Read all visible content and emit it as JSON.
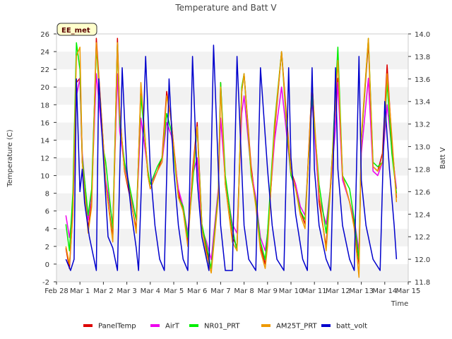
{
  "chart_data": {
    "type": "line",
    "title": "Temperature and Batt V",
    "xlabel": "Time",
    "ylabel": "Temperature (C)",
    "y2label": "Batt V",
    "badge": "EE_met",
    "xlim": [
      "Feb 28",
      "Mar 15"
    ],
    "x_ticks": [
      "Feb 28",
      "Mar 1",
      "Mar 2",
      "Mar 3",
      "Mar 4",
      "Mar 5",
      "Mar 6",
      "Mar 7",
      "Mar 8",
      "Mar 9",
      "Mar 10",
      "Mar 11",
      "Mar 12",
      "Mar 13",
      "Mar 14",
      "Mar 15"
    ],
    "ylim": [
      -2,
      26
    ],
    "y_ticks": [
      -2,
      0,
      2,
      4,
      6,
      8,
      10,
      12,
      14,
      16,
      18,
      20,
      22,
      24,
      26
    ],
    "y2lim": [
      11.8,
      14.0
    ],
    "y2_ticks": [
      "11.8",
      "12.0",
      "12.2",
      "12.4",
      "12.6",
      "12.8",
      "13.0",
      "13.2",
      "13.4",
      "13.6",
      "13.8",
      "14.0"
    ],
    "grid": "horizontal bands",
    "legend_position": "bottom",
    "x_day_offset_note": "x values are days after Feb 28",
    "series": [
      {
        "name": "PanelTemp",
        "color": "#dd0000",
        "axis": "left",
        "x": [
          0.4,
          0.55,
          0.7,
          0.85,
          1.0,
          1.1,
          1.35,
          1.5,
          1.7,
          2.0,
          2.1,
          2.4,
          2.6,
          2.7,
          2.9,
          3.1,
          3.4,
          3.6,
          3.9,
          4.0,
          4.3,
          4.5,
          4.7,
          4.9,
          5.2,
          5.4,
          5.6,
          5.8,
          6.0,
          6.2,
          6.4,
          6.6,
          6.9,
          7.0,
          7.2,
          7.5,
          7.7,
          7.9,
          8.0,
          8.3,
          8.5,
          8.7,
          8.9,
          9.0,
          9.3,
          9.6,
          9.8,
          10.0,
          10.2,
          10.4,
          10.6,
          10.9,
          11.2,
          11.5,
          11.7,
          11.9,
          12.0,
          12.2,
          12.5,
          12.7,
          12.9,
          13.0,
          13.3,
          13.5,
          13.7,
          13.9,
          14.1,
          14.3,
          14.5
        ],
        "y": [
          1.8,
          -0.5,
          6.0,
          20.5,
          21.0,
          11.5,
          4.0,
          7.0,
          25.5,
          13.5,
          9.0,
          3.0,
          25.5,
          17.0,
          10.5,
          8.0,
          4.0,
          20.0,
          10.0,
          8.5,
          10.5,
          12.0,
          19.5,
          16.0,
          8.0,
          6.0,
          2.5,
          10.5,
          16.0,
          4.5,
          1.5,
          -0.5,
          8.0,
          20.5,
          9.0,
          3.0,
          2.0,
          19.5,
          21.5,
          11.0,
          7.0,
          2.0,
          0.0,
          2.5,
          15.0,
          24.0,
          17.0,
          10.5,
          9.0,
          6.0,
          4.5,
          20.5,
          7.0,
          2.0,
          9.5,
          18.0,
          21.0,
          10.0,
          7.0,
          4.5,
          0.0,
          14.0,
          25.0,
          11.0,
          10.5,
          12.5,
          22.5,
          14.0,
          7.5
        ]
      },
      {
        "name": "AirT",
        "color": "#ee00ee",
        "axis": "left",
        "x": [
          0.4,
          0.55,
          0.7,
          0.85,
          1.0,
          1.1,
          1.35,
          1.5,
          1.7,
          2.0,
          2.1,
          2.4,
          2.6,
          2.7,
          2.9,
          3.1,
          3.4,
          3.6,
          3.9,
          4.0,
          4.3,
          4.5,
          4.7,
          4.9,
          5.2,
          5.4,
          5.6,
          5.8,
          6.0,
          6.2,
          6.4,
          6.6,
          6.9,
          7.0,
          7.2,
          7.5,
          7.7,
          7.9,
          8.0,
          8.3,
          8.5,
          8.7,
          8.9,
          9.0,
          9.3,
          9.6,
          9.8,
          10.0,
          10.2,
          10.4,
          10.6,
          10.9,
          11.2,
          11.5,
          11.7,
          11.9,
          12.0,
          12.2,
          12.5,
          12.7,
          12.9,
          13.0,
          13.3,
          13.5,
          13.7,
          13.9,
          14.1,
          14.3,
          14.5
        ],
        "y": [
          5.5,
          3.0,
          6.0,
          19.0,
          21.0,
          12.5,
          5.0,
          8.0,
          21.5,
          13.0,
          9.5,
          4.5,
          21.5,
          15.0,
          11.0,
          8.5,
          5.0,
          16.5,
          10.5,
          9.0,
          10.5,
          11.5,
          16.0,
          14.5,
          8.5,
          6.5,
          3.5,
          10.0,
          12.0,
          4.0,
          2.5,
          0.5,
          8.5,
          16.5,
          9.5,
          4.5,
          3.5,
          17.0,
          19.0,
          10.5,
          7.5,
          3.0,
          1.5,
          3.5,
          14.0,
          20.0,
          15.0,
          10.0,
          9.0,
          6.5,
          5.5,
          18.5,
          7.5,
          4.5,
          9.0,
          15.5,
          20.5,
          9.5,
          7.0,
          5.0,
          1.5,
          12.5,
          21.0,
          10.5,
          10.0,
          11.5,
          18.0,
          13.0,
          8.5
        ]
      },
      {
        "name": "NR01_PRT",
        "color": "#00ee00",
        "axis": "left",
        "x": [
          0.4,
          0.55,
          0.7,
          0.85,
          1.0,
          1.1,
          1.35,
          1.5,
          1.7,
          2.0,
          2.1,
          2.4,
          2.6,
          2.7,
          2.9,
          3.1,
          3.4,
          3.6,
          3.9,
          4.0,
          4.3,
          4.5,
          4.7,
          4.9,
          5.2,
          5.4,
          5.6,
          5.8,
          6.0,
          6.2,
          6.4,
          6.6,
          6.9,
          7.0,
          7.2,
          7.5,
          7.7,
          7.9,
          8.0,
          8.3,
          8.5,
          8.7,
          8.9,
          9.0,
          9.3,
          9.6,
          9.8,
          10.0,
          10.2,
          10.4,
          10.6,
          10.9,
          11.2,
          11.5,
          11.7,
          11.9,
          12.0,
          12.2,
          12.5,
          12.7,
          12.9,
          13.0,
          13.3,
          13.5,
          13.7,
          13.9,
          14.1,
          14.3,
          14.5
        ],
        "y": [
          4.5,
          1.5,
          8.0,
          25.0,
          22.0,
          12.0,
          5.5,
          8.5,
          24.5,
          13.0,
          11.5,
          4.0,
          25.0,
          16.0,
          11.5,
          9.0,
          5.0,
          19.0,
          10.5,
          9.0,
          11.0,
          12.0,
          17.0,
          15.0,
          7.5,
          6.5,
          3.0,
          9.0,
          15.5,
          4.5,
          2.0,
          -0.5,
          8.0,
          20.5,
          10.0,
          4.0,
          1.5,
          20.0,
          21.5,
          10.0,
          7.0,
          2.5,
          0.5,
          3.5,
          16.0,
          24.0,
          16.0,
          10.0,
          8.5,
          6.0,
          5.0,
          19.0,
          9.0,
          3.5,
          9.0,
          19.5,
          24.5,
          10.0,
          8.5,
          5.0,
          0.5,
          14.0,
          25.5,
          11.5,
          11.0,
          11.5,
          20.5,
          12.5,
          8.0
        ]
      },
      {
        "name": "AM25T_PRT",
        "color": "#ee9900",
        "axis": "left",
        "x": [
          0.4,
          0.55,
          0.7,
          0.85,
          1.0,
          1.1,
          1.35,
          1.5,
          1.7,
          2.0,
          2.1,
          2.4,
          2.6,
          2.7,
          2.9,
          3.1,
          3.4,
          3.6,
          3.9,
          4.0,
          4.3,
          4.5,
          4.7,
          4.9,
          5.2,
          5.4,
          5.6,
          5.8,
          6.0,
          6.2,
          6.4,
          6.6,
          6.9,
          7.0,
          7.2,
          7.5,
          7.7,
          7.9,
          8.0,
          8.3,
          8.5,
          8.7,
          8.9,
          9.0,
          9.3,
          9.6,
          9.8,
          10.0,
          10.2,
          10.4,
          10.6,
          10.9,
          11.2,
          11.5,
          11.7,
          11.9,
          12.0,
          12.2,
          12.5,
          12.7,
          12.9,
          13.0,
          13.3,
          13.5,
          13.7,
          13.9,
          14.1,
          14.3,
          14.5
        ],
        "y": [
          2.0,
          0.0,
          5.5,
          23.5,
          24.5,
          11.5,
          3.5,
          6.5,
          25.0,
          13.5,
          9.0,
          2.5,
          25.0,
          17.0,
          10.5,
          8.5,
          3.5,
          20.5,
          10.0,
          8.5,
          10.5,
          11.5,
          19.0,
          16.0,
          7.5,
          6.0,
          2.0,
          10.0,
          15.5,
          4.0,
          1.0,
          -1.0,
          7.5,
          20.0,
          9.0,
          2.5,
          1.5,
          19.5,
          21.5,
          10.5,
          6.5,
          1.5,
          -0.5,
          2.0,
          15.5,
          24.0,
          16.5,
          10.5,
          8.5,
          5.5,
          4.0,
          20.5,
          8.0,
          1.5,
          9.0,
          18.5,
          23.0,
          10.0,
          7.0,
          4.0,
          -1.5,
          14.5,
          25.5,
          11.0,
          10.5,
          11.5,
          21.5,
          14.5,
          7.0
        ]
      },
      {
        "name": "batt_volt",
        "color": "#0000cc",
        "axis": "right",
        "x": [
          0.4,
          0.6,
          0.75,
          0.85,
          1.0,
          1.1,
          1.2,
          1.4,
          1.7,
          1.8,
          2.0,
          2.2,
          2.4,
          2.6,
          2.8,
          3.0,
          3.2,
          3.4,
          3.5,
          3.8,
          4.0,
          4.2,
          4.4,
          4.6,
          4.8,
          5.0,
          5.2,
          5.4,
          5.6,
          5.8,
          6.0,
          6.2,
          6.5,
          6.7,
          6.9,
          7.0,
          7.2,
          7.5,
          7.7,
          7.9,
          8.0,
          8.2,
          8.5,
          8.7,
          9.0,
          9.2,
          9.4,
          9.7,
          9.9,
          10.0,
          10.2,
          10.5,
          10.7,
          10.9,
          11.0,
          11.2,
          11.5,
          11.7,
          11.9,
          12.0,
          12.2,
          12.5,
          12.7,
          12.9,
          13.0,
          13.2,
          13.5,
          13.8,
          14.0,
          14.2,
          14.4,
          14.5
        ],
        "y": [
          12.0,
          11.9,
          12.0,
          13.6,
          12.6,
          12.8,
          12.5,
          12.2,
          11.9,
          13.6,
          12.9,
          12.2,
          12.1,
          11.9,
          13.7,
          12.8,
          12.4,
          12.1,
          11.9,
          13.8,
          12.8,
          12.3,
          12.0,
          11.9,
          13.6,
          12.8,
          12.3,
          12.0,
          11.9,
          13.8,
          12.7,
          12.2,
          11.9,
          13.9,
          12.8,
          12.3,
          11.9,
          11.9,
          13.8,
          12.8,
          12.3,
          12.0,
          11.9,
          13.7,
          12.8,
          12.3,
          12.0,
          11.9,
          13.7,
          12.9,
          12.4,
          12.0,
          11.9,
          13.7,
          12.8,
          12.3,
          12.0,
          11.9,
          13.7,
          12.8,
          12.3,
          12.0,
          11.9,
          13.8,
          12.7,
          12.3,
          12.0,
          11.9,
          13.4,
          12.8,
          12.3,
          12.0
        ]
      }
    ]
  }
}
